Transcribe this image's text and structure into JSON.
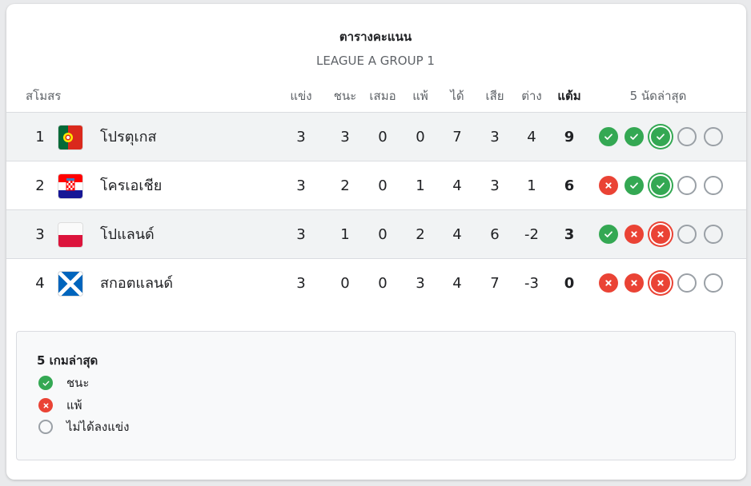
{
  "title": "ตารางคะแนน",
  "subtitle": "LEAGUE A GROUP 1",
  "headers": {
    "club": "สโมสร",
    "played": "แข่ง",
    "won": "ชนะ",
    "drawn": "เสมอ",
    "lost": "แพ้",
    "gf": "ได้",
    "ga": "เสีย",
    "gd": "ต่าง",
    "pts": "แต้ม",
    "form": "5 นัดล่าสุด"
  },
  "rows": [
    {
      "pos": "1",
      "team": "โปรตุเกส",
      "flag": "portugal",
      "played": "3",
      "won": "3",
      "drawn": "0",
      "lost": "0",
      "gf": "7",
      "ga": "3",
      "gd": "4",
      "pts": "9",
      "form": [
        "win",
        "win",
        "win",
        "none",
        "none"
      ]
    },
    {
      "pos": "2",
      "team": "โครเอเชีย",
      "flag": "croatia",
      "played": "3",
      "won": "2",
      "drawn": "0",
      "lost": "1",
      "gf": "4",
      "ga": "3",
      "gd": "1",
      "pts": "6",
      "form": [
        "loss",
        "win",
        "win",
        "none",
        "none"
      ]
    },
    {
      "pos": "3",
      "team": "โปแลนด์",
      "flag": "poland",
      "played": "3",
      "won": "1",
      "drawn": "0",
      "lost": "2",
      "gf": "4",
      "ga": "6",
      "gd": "-2",
      "pts": "3",
      "form": [
        "win",
        "loss",
        "loss",
        "none",
        "none"
      ]
    },
    {
      "pos": "4",
      "team": "สกอตแลนด์",
      "flag": "scotland",
      "played": "3",
      "won": "0",
      "drawn": "0",
      "lost": "3",
      "gf": "4",
      "ga": "7",
      "gd": "-3",
      "pts": "0",
      "form": [
        "loss",
        "loss",
        "loss",
        "none",
        "none"
      ]
    }
  ],
  "legend": {
    "title": "5 เกมล่าสุด",
    "win": "ชนะ",
    "loss": "แพ้",
    "none": "ไม่ได้ลงแข่ง"
  },
  "colors": {
    "win": "#34a853",
    "loss": "#ea4335",
    "none": "#9aa0a6"
  }
}
